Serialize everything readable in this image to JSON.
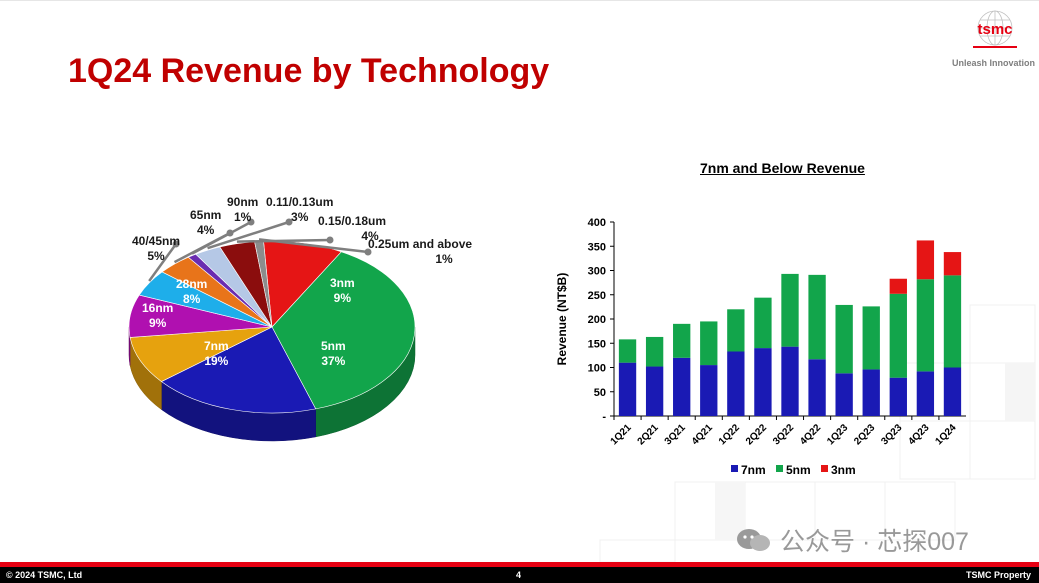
{
  "slide": {
    "title": "1Q24 Revenue by Technology",
    "logo_text": "tsmc",
    "tagline": "Unleash Innovation",
    "footer_left": "© 2024 TSMC, Ltd",
    "page_number": "4",
    "footer_right": "TSMC Property",
    "watermark": "公众号 · 芯探007"
  },
  "colors": {
    "title_red": "#c00000",
    "n7": "#1a1ab4",
    "n5": "#12a54b",
    "n3": "#e51515"
  },
  "chart_data": [
    {
      "type": "pie",
      "title": "",
      "slices": [
        {
          "label": "3nm",
          "value": 9,
          "pct": "9%",
          "color": "#e51515"
        },
        {
          "label": "5nm",
          "value": 37,
          "pct": "37%",
          "color": "#12a54b"
        },
        {
          "label": "7nm",
          "value": 19,
          "pct": "19%",
          "color": "#1a1ab4"
        },
        {
          "label": "16nm",
          "value": 9,
          "pct": "9%",
          "color": "#e6a20e"
        },
        {
          "label": "28nm",
          "value": 8,
          "pct": "8%",
          "color": "#b010b0"
        },
        {
          "label": "40/45nm",
          "value": 5,
          "pct": "5%",
          "color": "#1eaeea"
        },
        {
          "label": "65nm",
          "value": 4,
          "pct": "4%",
          "color": "#e8741a"
        },
        {
          "label": "90nm",
          "value": 1,
          "pct": "1%",
          "color": "#6a2cb0"
        },
        {
          "label": "0.11/0.13um",
          "value": 3,
          "pct": "3%",
          "color": "#b5c8e6"
        },
        {
          "label": "0.15/0.18um",
          "value": 4,
          "pct": "4%",
          "color": "#8b0d0d"
        },
        {
          "label": "0.25um and above",
          "value": 1,
          "pct": "1%",
          "color": "#8c8c8c"
        }
      ]
    },
    {
      "type": "bar",
      "stacked": true,
      "title": "7nm and Below Revenue",
      "xlabel": "",
      "ylabel": "Revenue (NT$B)",
      "ylim": [
        0,
        400
      ],
      "yticks": [
        "-",
        "50",
        "100",
        "150",
        "200",
        "250",
        "300",
        "350",
        "400"
      ],
      "categories": [
        "1Q21",
        "2Q21",
        "3Q21",
        "4Q21",
        "1Q22",
        "2Q22",
        "3Q22",
        "4Q22",
        "1Q23",
        "2Q23",
        "3Q23",
        "4Q23",
        "1Q24"
      ],
      "series": [
        {
          "name": "7nm",
          "color": "#1a1ab4",
          "values": [
            110,
            102,
            120,
            105,
            133,
            140,
            143,
            117,
            88,
            96,
            79,
            92,
            100
          ]
        },
        {
          "name": "5nm",
          "color": "#12a54b",
          "values": [
            48,
            61,
            70,
            90,
            87,
            104,
            150,
            174,
            141,
            130,
            173,
            190,
            190
          ]
        },
        {
          "name": "3nm",
          "color": "#e51515",
          "values": [
            0,
            0,
            0,
            0,
            0,
            0,
            0,
            0,
            0,
            0,
            31,
            80,
            48
          ]
        }
      ],
      "legend": "bottom"
    }
  ]
}
